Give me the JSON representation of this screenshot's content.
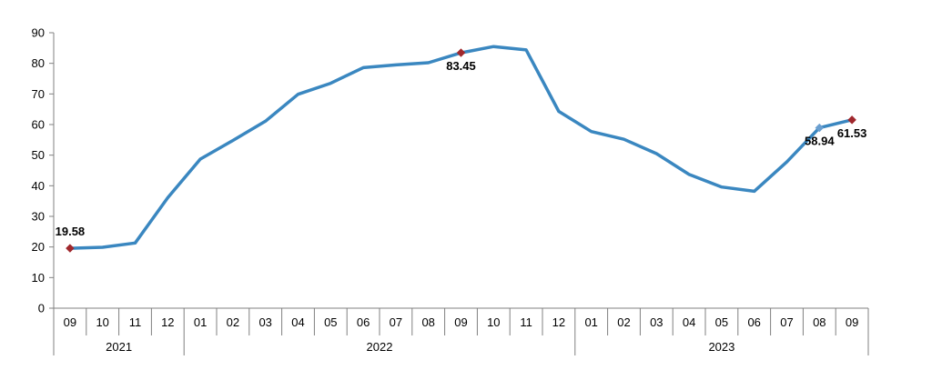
{
  "chart_data": {
    "type": "line",
    "ylim": [
      0,
      90
    ],
    "yticks": [
      0,
      10,
      20,
      30,
      40,
      50,
      60,
      70,
      80,
      90
    ],
    "grid": false,
    "colors": {
      "line": "#3a87c0",
      "marker_highlight": "#a0282d",
      "marker_blue": "#6a9fd0",
      "axis": "#808080"
    },
    "x": [
      "09",
      "10",
      "11",
      "12",
      "01",
      "02",
      "03",
      "04",
      "05",
      "06",
      "07",
      "08",
      "09",
      "10",
      "11",
      "12",
      "01",
      "02",
      "03",
      "04",
      "05",
      "06",
      "07",
      "08",
      "09"
    ],
    "year_groups": [
      {
        "label": "2021",
        "count": 4
      },
      {
        "label": "2022",
        "count": 12
      },
      {
        "label": "2023",
        "count": 9
      }
    ],
    "series": [
      {
        "values": [
          19.58,
          19.9,
          21.3,
          36.1,
          48.7,
          54.8,
          61.1,
          69.9,
          73.5,
          78.6,
          79.5,
          80.2,
          83.45,
          85.5,
          84.4,
          64.3,
          57.7,
          55.2,
          50.5,
          43.7,
          39.6,
          38.2,
          47.8,
          58.94,
          61.53
        ]
      }
    ],
    "annotations": [
      {
        "index": 0,
        "label": "19.58",
        "marker": "highlight",
        "position": "above"
      },
      {
        "index": 12,
        "label": "83.45",
        "marker": "highlight",
        "position": "below"
      },
      {
        "index": 23,
        "label": "58.94",
        "marker": "blue",
        "position": "below"
      },
      {
        "index": 24,
        "label": "61.53",
        "marker": "highlight",
        "position": "below"
      }
    ]
  }
}
